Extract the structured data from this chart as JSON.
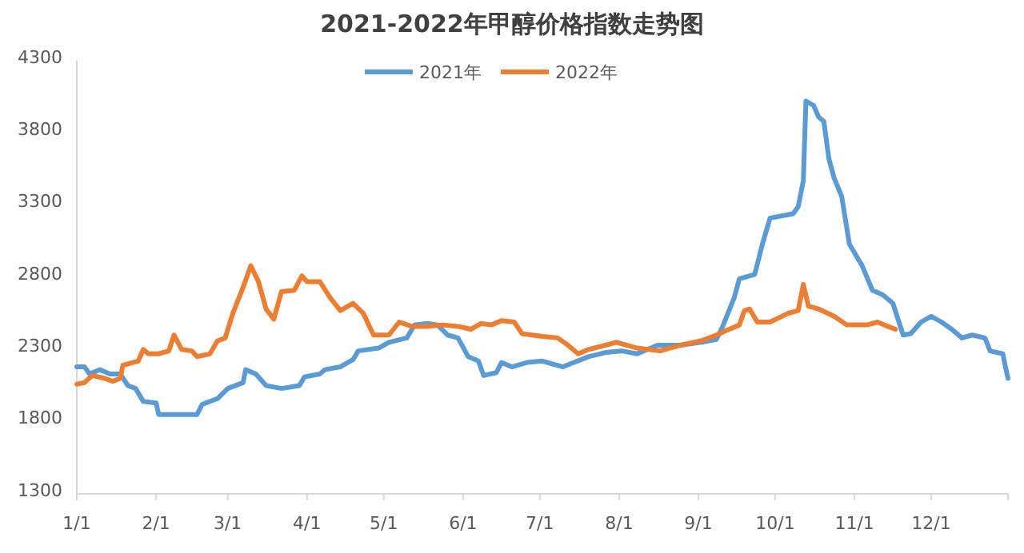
{
  "chart_data": {
    "type": "line",
    "title": "2021-2022年甲醇价格指数走势图",
    "xlim": [
      "--01-01",
      "--12-31"
    ],
    "ylim": [
      1300,
      4300
    ],
    "yticks": [
      1300,
      1800,
      2300,
      2800,
      3300,
      3800,
      4300
    ],
    "xticks": [
      {
        "value": "--01-01",
        "label": "1/1"
      },
      {
        "value": "--02-01",
        "label": "2/1"
      },
      {
        "value": "--03-01",
        "label": "3/1"
      },
      {
        "value": "--04-01",
        "label": "4/1"
      },
      {
        "value": "--05-01",
        "label": "5/1"
      },
      {
        "value": "--06-01",
        "label": "6/1"
      },
      {
        "value": "--07-01",
        "label": "7/1"
      },
      {
        "value": "--08-01",
        "label": "8/1"
      },
      {
        "value": "--09-01",
        "label": "9/1"
      },
      {
        "value": "--10-01",
        "label": "10/1"
      },
      {
        "value": "--11-01",
        "label": "11/1"
      },
      {
        "value": "--12-01",
        "label": "12/1"
      },
      {
        "value": "--12-31",
        "label": null
      }
    ],
    "legend": "top",
    "grid": false,
    "marker": "none",
    "line_style": "solid",
    "series": [
      {
        "name": "2021年",
        "color": "#5b9bd5",
        "x": [
          "--01-01",
          "--01-04",
          "--01-06",
          "--01-10",
          "--01-14",
          "--01-18",
          "--01-21",
          "--01-24",
          "--01-27",
          "--02-01",
          "--02-02",
          "--02-06",
          "--02-17",
          "--02-19",
          "--02-25",
          "--03-01",
          "--03-07",
          "--03-08",
          "--03-12",
          "--03-16",
          "--03-22",
          "--03-29",
          "--03-31",
          "--04-06",
          "--04-08",
          "--04-14",
          "--04-19",
          "--04-21",
          "--04-29",
          "--05-03",
          "--05-10",
          "--05-13",
          "--05-18",
          "--05-22",
          "--05-26",
          "--05-30",
          "--06-03",
          "--06-07",
          "--06-09",
          "--06-14",
          "--06-16",
          "--06-20",
          "--06-26",
          "--07-02",
          "--07-10",
          "--07-20",
          "--07-27",
          "--08-02",
          "--08-08",
          "--08-16",
          "--08-25",
          "--09-02",
          "--09-08",
          "--09-10",
          "--09-15",
          "--09-17",
          "--09-23",
          "--09-26",
          "--09-29",
          "--10-08",
          "--10-10",
          "--10-12",
          "--10-13",
          "--10-16",
          "--10-18",
          "--10-20",
          "--10-22",
          "--10-24",
          "--10-27",
          "--10-30",
          "--11-04",
          "--11-08",
          "--11-12",
          "--11-16",
          "--11-20",
          "--11-23",
          "--11-27",
          "--12-01",
          "--12-05",
          "--12-09",
          "--12-13",
          "--12-17",
          "--12-22",
          "--12-24",
          "--12-29",
          "--12-30",
          "--12-31"
        ],
        "values": [
          2180,
          2180,
          2130,
          2160,
          2130,
          2130,
          2050,
          2030,
          1940,
          1930,
          1850,
          1850,
          1850,
          1920,
          1960,
          2030,
          2070,
          2160,
          2130,
          2050,
          2030,
          2050,
          2110,
          2130,
          2160,
          2180,
          2230,
          2290,
          2310,
          2350,
          2380,
          2470,
          2480,
          2470,
          2400,
          2380,
          2250,
          2220,
          2120,
          2140,
          2210,
          2180,
          2210,
          2220,
          2180,
          2250,
          2280,
          2290,
          2270,
          2330,
          2330,
          2350,
          2370,
          2440,
          2660,
          2790,
          2820,
          3030,
          3210,
          3240,
          3290,
          3470,
          4020,
          3990,
          3910,
          3880,
          3620,
          3490,
          3360,
          3030,
          2880,
          2710,
          2680,
          2620,
          2400,
          2410,
          2490,
          2530,
          2490,
          2440,
          2380,
          2400,
          2380,
          2290,
          2270,
          2180,
          2100
        ]
      },
      {
        "name": "2022年",
        "color": "#ed7d31",
        "x": [
          "--01-01",
          "--01-04",
          "--01-07",
          "--01-12",
          "--01-15",
          "--01-18",
          "--01-19",
          "--01-25",
          "--01-27",
          "--01-29",
          "--02-02",
          "--02-06",
          "--02-08",
          "--02-11",
          "--02-15",
          "--02-17",
          "--02-22",
          "--02-25",
          "--02-28",
          "--03-03",
          "--03-07",
          "--03-10",
          "--03-13",
          "--03-16",
          "--03-19",
          "--03-22",
          "--03-27",
          "--03-30",
          "--04-01",
          "--04-06",
          "--04-10",
          "--04-14",
          "--04-19",
          "--04-23",
          "--04-27",
          "--05-03",
          "--05-07",
          "--05-12",
          "--05-18",
          "--05-24",
          "--05-30",
          "--06-04",
          "--06-08",
          "--06-12",
          "--06-16",
          "--06-21",
          "--06-24",
          "--07-02",
          "--07-08",
          "--07-12",
          "--07-16",
          "--07-20",
          "--07-31",
          "--08-08",
          "--08-17",
          "--08-25",
          "--09-02",
          "--09-08",
          "--09-13",
          "--09-17",
          "--09-19",
          "--09-21",
          "--09-24",
          "--09-29",
          "--10-06",
          "--10-10",
          "--10-12",
          "--10-14",
          "--10-18",
          "--10-24",
          "--10-29",
          "--11-06",
          "--11-10",
          "--11-14",
          "--11-17"
        ],
        "values": [
          2060,
          2070,
          2120,
          2100,
          2080,
          2100,
          2190,
          2220,
          2300,
          2270,
          2270,
          2290,
          2400,
          2300,
          2290,
          2250,
          2270,
          2360,
          2380,
          2550,
          2730,
          2880,
          2770,
          2580,
          2510,
          2700,
          2710,
          2810,
          2770,
          2770,
          2660,
          2570,
          2620,
          2550,
          2400,
          2400,
          2490,
          2460,
          2460,
          2470,
          2460,
          2440,
          2480,
          2470,
          2500,
          2490,
          2410,
          2390,
          2380,
          2330,
          2270,
          2300,
          2350,
          2310,
          2290,
          2330,
          2360,
          2400,
          2440,
          2470,
          2570,
          2580,
          2490,
          2490,
          2550,
          2570,
          2750,
          2600,
          2580,
          2530,
          2470,
          2470,
          2490,
          2460,
          2440
        ]
      }
    ]
  }
}
